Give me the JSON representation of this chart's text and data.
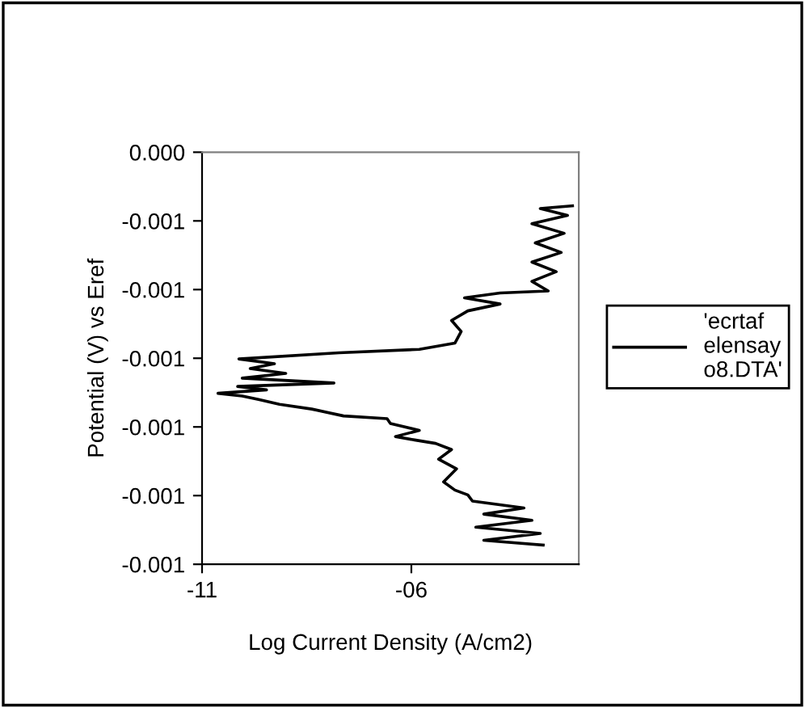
{
  "chart_data": {
    "type": "line",
    "xlabel": "Log Current Density (A/cm2)",
    "ylabel": "Potential (V) vs Eref",
    "xlim": [
      -11,
      -2
    ],
    "xticks": [
      {
        "value": -11,
        "label": "-11"
      },
      {
        "value": -6,
        "label": "-06"
      }
    ],
    "ylim": [
      -0.001,
      -0.0004
    ],
    "yticks": [
      {
        "value": -0.0004,
        "label": "0.000"
      },
      {
        "value": -0.0005,
        "label": "-0.001"
      },
      {
        "value": -0.0006,
        "label": "-0.001"
      },
      {
        "value": -0.0007,
        "label": "-0.001"
      },
      {
        "value": -0.0008,
        "label": "-0.001"
      },
      {
        "value": -0.0009,
        "label": "-0.001"
      },
      {
        "value": -0.001,
        "label": "-0.001"
      }
    ],
    "grid": false,
    "legend": "right",
    "marker": "none",
    "line_style": "solid",
    "series": [
      {
        "name": "'ecrtaf\nelensay\no8.DTA'",
        "color": "#000000",
        "x": [
          -2.85,
          -4.27,
          -2.92,
          -4.46,
          -3.12,
          -4.27,
          -3.31,
          -4.54,
          -4.65,
          -4.96,
          -5.23,
          -4.92,
          -5.35,
          -5.04,
          -5.42,
          -5.92,
          -6.38,
          -5.81,
          -6.5,
          -6.58,
          -7.62,
          -8.38,
          -9.15,
          -9.65,
          -10.04,
          -10.62,
          -9.46,
          -10.15,
          -7.85,
          -10.04,
          -9.0,
          -9.85,
          -9.27,
          -10.12,
          -7.73,
          -5.81,
          -4.96,
          -4.81,
          -5.04,
          -4.65,
          -3.88,
          -4.73,
          -3.88,
          -2.73,
          -3.12,
          -2.54,
          -3.12,
          -2.42,
          -3.04,
          -2.35,
          -3.12,
          -2.27,
          -2.92,
          -2.15
        ],
        "values": [
          -0.000972,
          -0.000965,
          -0.000955,
          -0.000946,
          -0.000936,
          -0.000927,
          -0.000918,
          -0.000908,
          -0.000899,
          -0.000892,
          -0.00088,
          -0.000861,
          -0.000847,
          -0.000833,
          -0.000824,
          -0.000819,
          -0.000814,
          -0.000805,
          -0.000795,
          -0.000788,
          -0.000784,
          -0.000774,
          -0.000767,
          -0.00076,
          -0.000755,
          -0.000751,
          -0.000746,
          -0.000741,
          -0.000736,
          -0.000729,
          -0.000722,
          -0.000715,
          -0.000708,
          -0.000701,
          -0.000692,
          -0.000687,
          -0.000678,
          -0.000661,
          -0.000645,
          -0.000631,
          -0.000621,
          -0.000612,
          -0.000605,
          -0.000602,
          -0.000588,
          -0.000574,
          -0.00056,
          -0.000546,
          -0.000532,
          -0.000518,
          -0.000504,
          -0.000492,
          -0.000482,
          -0.000478
        ]
      }
    ]
  }
}
